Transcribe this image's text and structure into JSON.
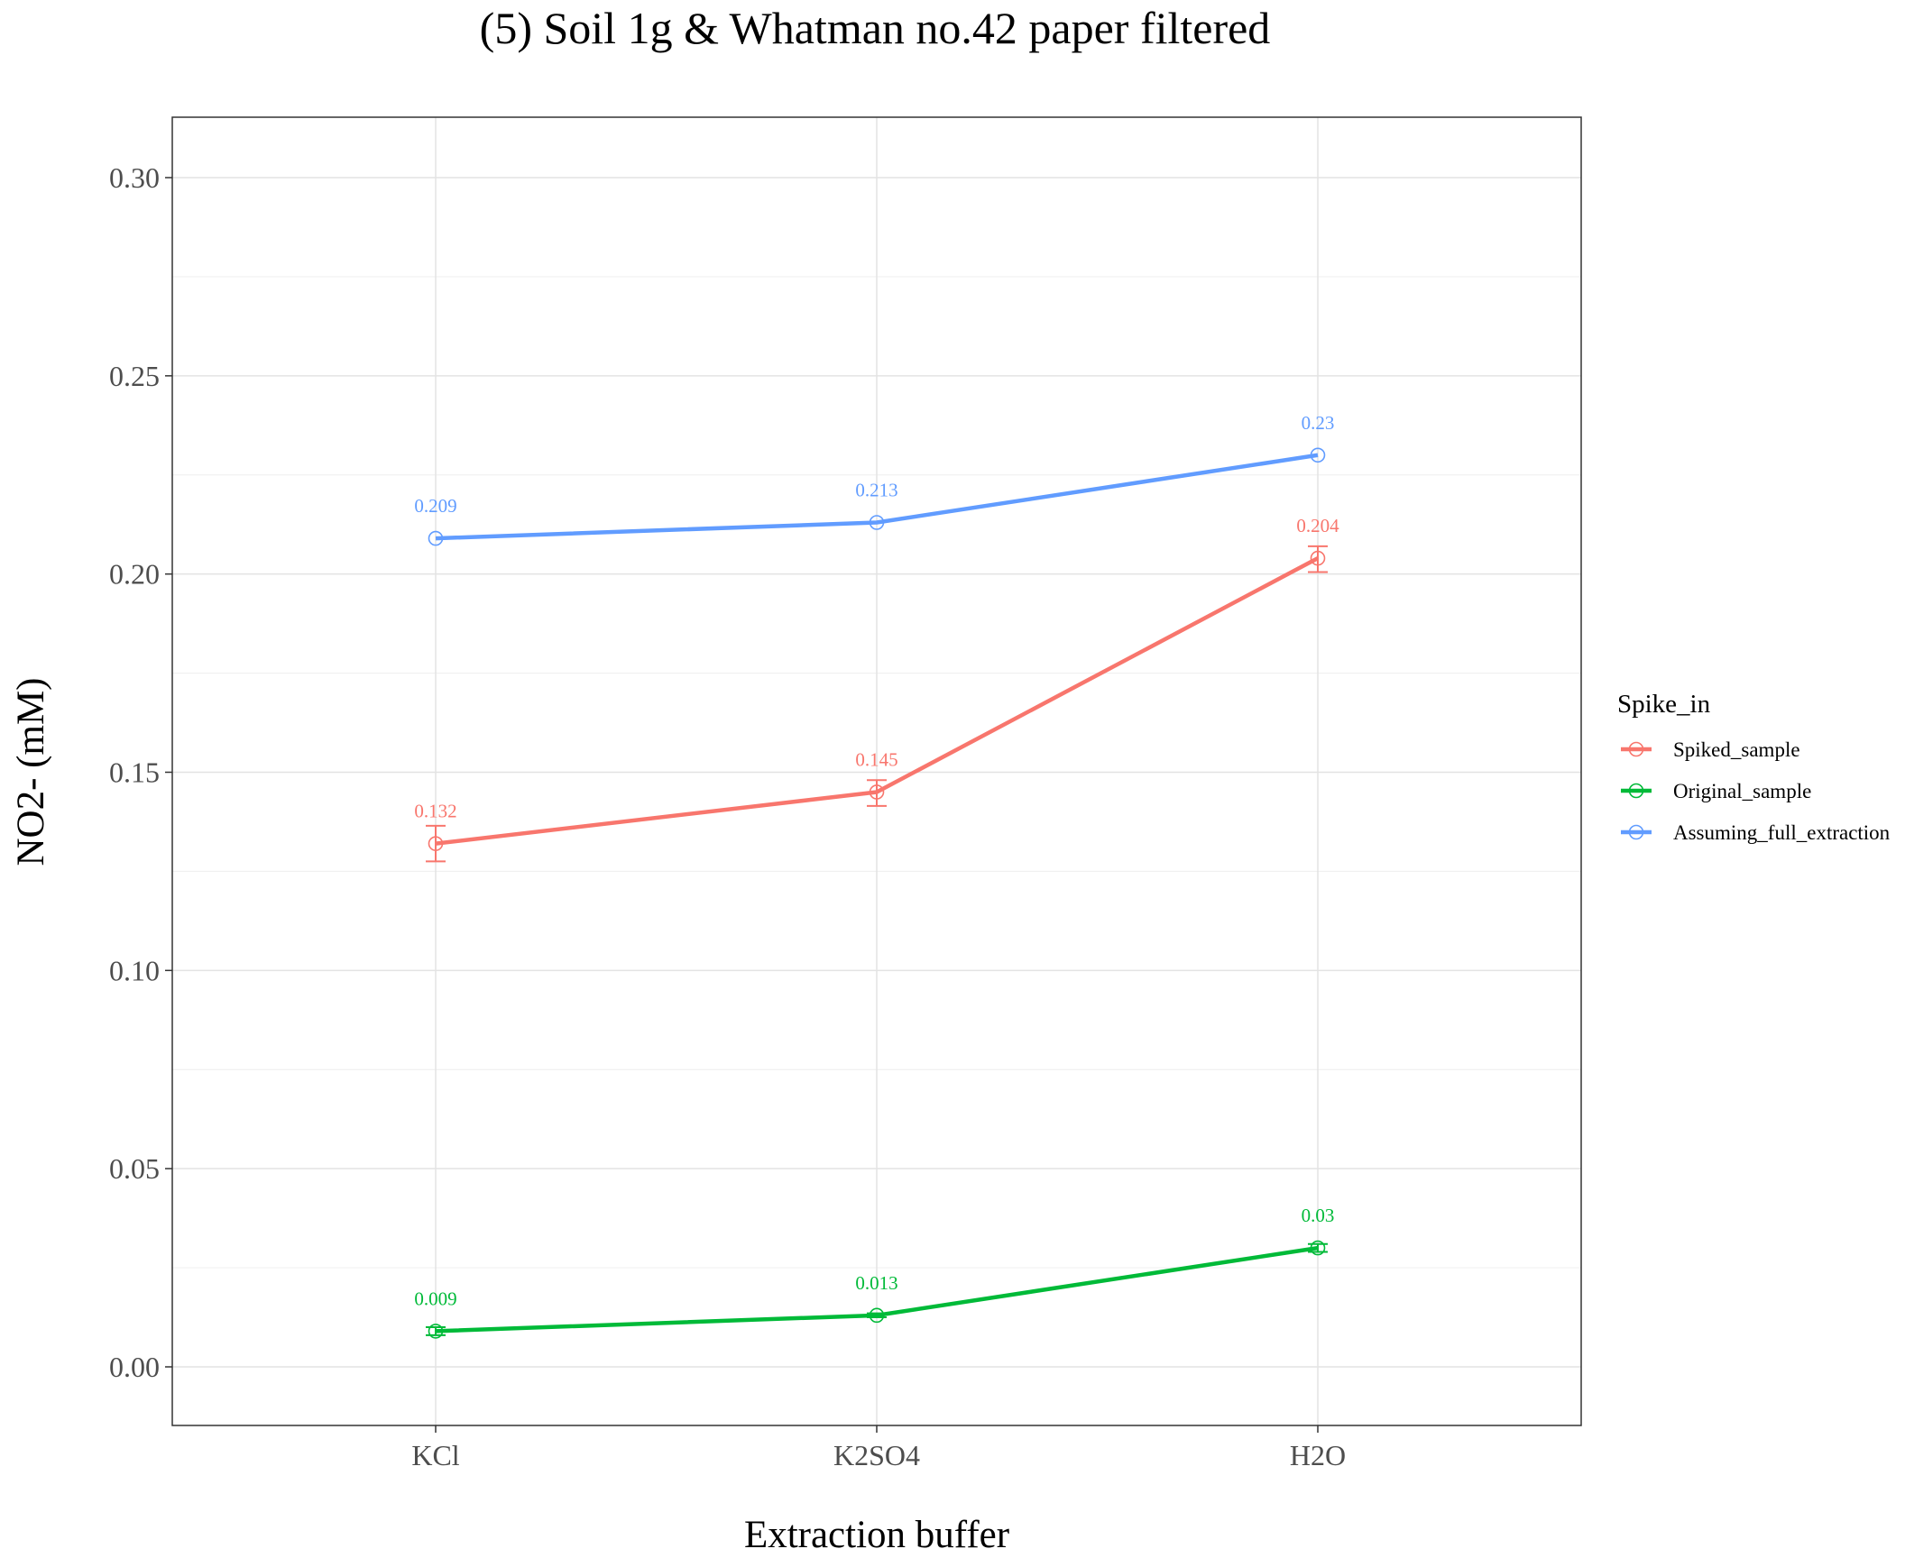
{
  "chart_data": {
    "type": "line",
    "title": "(5) Soil 1g & Whatman no.42 paper filtered",
    "xlabel": "Extraction buffer",
    "ylabel": "NO2- (mM)",
    "categories": [
      "KCl",
      "K2SO4",
      "H2O"
    ],
    "ylim": [
      -0.0145,
      0.315
    ],
    "yticks": [
      0.0,
      0.05,
      0.1,
      0.15,
      0.2,
      0.25,
      0.3
    ],
    "ytick_labels": [
      "0.00",
      "0.05",
      "0.10",
      "0.15",
      "0.20",
      "0.25",
      "0.30"
    ],
    "grid": true,
    "legend": {
      "title": "Spike_in",
      "placement": "right"
    },
    "series": [
      {
        "name": "Spiked_sample",
        "color": "#F8766D",
        "values": [
          0.132,
          0.145,
          0.204
        ],
        "labels": [
          "0.132",
          "0.145",
          "0.204"
        ],
        "error_low": [
          0.1275,
          0.1415,
          0.2005
        ],
        "error_high": [
          0.1365,
          0.148,
          0.207
        ]
      },
      {
        "name": "Original_sample",
        "color": "#00BA38",
        "values": [
          0.009,
          0.013,
          0.03
        ],
        "labels": [
          "0.009",
          "0.013",
          "0.03"
        ],
        "error_low": [
          0.008,
          0.0125,
          0.029
        ],
        "error_high": [
          0.01,
          0.0135,
          0.031
        ]
      },
      {
        "name": "Assuming_full_extraction",
        "color": "#619CFF",
        "values": [
          0.209,
          0.213,
          0.23
        ],
        "labels": [
          "0.209",
          "0.213",
          "0.23"
        ]
      }
    ]
  }
}
